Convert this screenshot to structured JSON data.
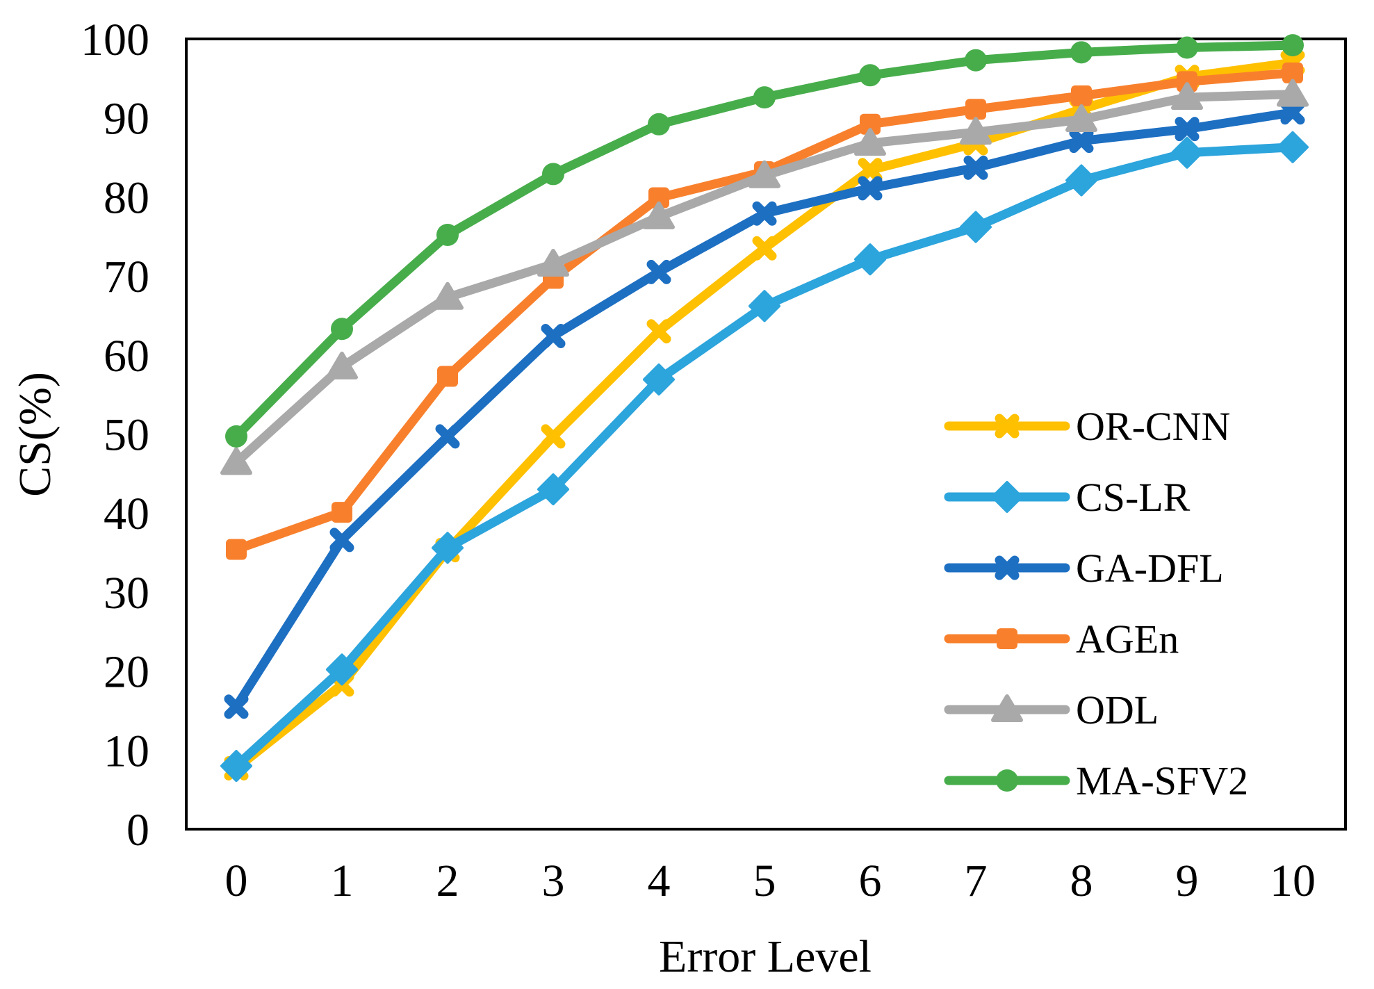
{
  "chart_data": {
    "type": "line",
    "title": "",
    "xlabel": "Error Level",
    "ylabel": "CS(%)",
    "x": [
      0,
      1,
      2,
      3,
      4,
      5,
      6,
      7,
      8,
      9,
      10
    ],
    "yticks": [
      0,
      10,
      20,
      30,
      40,
      50,
      60,
      70,
      80,
      90,
      100
    ],
    "ylim": [
      0,
      100
    ],
    "xlim": [
      0,
      10
    ],
    "grid": false,
    "legend_position": "inside-right",
    "axis_color": "#000000",
    "background_color": "#ffffff",
    "series": [
      {
        "name": "OR-CNN",
        "marker": "x",
        "color": "#FFC000",
        "values": [
          7.7,
          18.3,
          35.3,
          49.7,
          63.0,
          73.5,
          83.4,
          86.8,
          91.1,
          95.2,
          97.0
        ]
      },
      {
        "name": "CS-LR",
        "marker": "diamond",
        "color": "#2CA4DC",
        "values": [
          8.0,
          20.2,
          35.6,
          43.0,
          56.9,
          66.2,
          72.1,
          76.2,
          82.1,
          85.6,
          86.3
        ]
      },
      {
        "name": "GA-DFL",
        "marker": "x",
        "color": "#1D6FC2",
        "values": [
          15.5,
          36.6,
          49.7,
          62.4,
          70.5,
          77.9,
          81.1,
          83.7,
          87.1,
          88.6,
          90.7
        ]
      },
      {
        "name": "AGEn",
        "marker": "square",
        "color": "#F8802D",
        "values": [
          35.4,
          40.1,
          57.3,
          69.7,
          79.9,
          83.2,
          89.2,
          91.1,
          92.8,
          94.6,
          95.7
        ]
      },
      {
        "name": "ODL",
        "marker": "triangle",
        "color": "#A9A9A9",
        "values": [
          46.4,
          58.5,
          67.3,
          71.5,
          77.5,
          82.7,
          86.8,
          88.2,
          89.8,
          92.6,
          93.0
        ]
      },
      {
        "name": "MA-SFV2",
        "marker": "circle",
        "color": "#47AD4B",
        "values": [
          49.7,
          63.3,
          75.2,
          82.9,
          89.2,
          92.6,
          95.4,
          97.3,
          98.3,
          98.9,
          99.2
        ]
      }
    ]
  }
}
